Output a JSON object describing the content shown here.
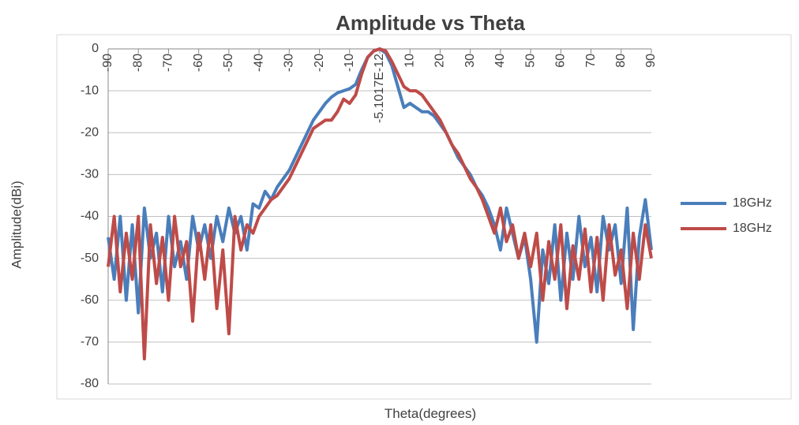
{
  "chart_data": {
    "type": "line",
    "title": "Amplitude vs Theta",
    "x_label": "Theta(degrees)",
    "y_label": "Amplitude(dBi)",
    "x": [
      -90,
      -88,
      -86,
      -84,
      -82,
      -80,
      -78,
      -76,
      -74,
      -72,
      -70,
      -68,
      -66,
      -64,
      -62,
      -60,
      -58,
      -56,
      -54,
      -52,
      -50,
      -48,
      -46,
      -44,
      -42,
      -40,
      -38,
      -36,
      -34,
      -32,
      -30,
      -28,
      -26,
      -24,
      -22,
      -20,
      -18,
      -16,
      -14,
      -12,
      -10,
      -8,
      -6,
      -4,
      -2,
      0,
      2,
      4,
      6,
      8,
      10,
      12,
      14,
      16,
      18,
      20,
      22,
      24,
      26,
      28,
      30,
      32,
      34,
      36,
      38,
      40,
      42,
      44,
      46,
      48,
      50,
      52,
      54,
      56,
      58,
      60,
      62,
      64,
      66,
      68,
      70,
      72,
      74,
      76,
      78,
      80,
      82,
      84,
      86,
      88,
      90
    ],
    "series": [
      {
        "name": "18GHz",
        "color": "#4a7ebb",
        "values": [
          -45,
          -55,
          -40,
          -60,
          -42,
          -63,
          -38,
          -50,
          -44,
          -58,
          -40,
          -52,
          -46,
          -55,
          -40,
          -48,
          -42,
          -50,
          -40,
          -46,
          -38,
          -44,
          -40,
          -48,
          -37,
          -38,
          -34,
          -36,
          -33,
          -31,
          -29,
          -26,
          -23,
          -20,
          -17,
          -15,
          -13,
          -11.5,
          -10.5,
          -10,
          -9.5,
          -8.5,
          -5,
          -2,
          -0.5,
          0,
          -1,
          -4,
          -9,
          -14,
          -13,
          -14,
          -15,
          -15,
          -16,
          -18,
          -20,
          -23,
          -26,
          -28,
          -30,
          -33,
          -35,
          -38,
          -42,
          -48,
          -38,
          -44,
          -50,
          -45,
          -55,
          -70,
          -48,
          -56,
          -42,
          -60,
          -44,
          -55,
          -40,
          -52,
          -45,
          -58,
          -40,
          -48,
          -42,
          -56,
          -38,
          -67,
          -45,
          -36,
          -48
        ]
      },
      {
        "name": "18GHz",
        "color": "#be4b48",
        "values": [
          -52,
          -40,
          -58,
          -44,
          -55,
          -40,
          -74,
          -42,
          -56,
          -45,
          -60,
          -40,
          -52,
          -46,
          -65,
          -44,
          -55,
          -42,
          -62,
          -48,
          -68,
          -40,
          -48,
          -42,
          -44,
          -40,
          -38,
          -36,
          -35,
          -33,
          -31,
          -28,
          -25,
          -22,
          -19,
          -18,
          -17,
          -17,
          -15,
          -12,
          -13,
          -11,
          -6,
          -2,
          -0.5,
          0,
          -0.5,
          -3,
          -6,
          -9,
          -10,
          -10,
          -11,
          -13,
          -15,
          -17,
          -20,
          -23,
          -25,
          -28,
          -31,
          -33,
          -36,
          -40,
          -44,
          -38,
          -46,
          -42,
          -50,
          -44,
          -52,
          -44,
          -60,
          -46,
          -55,
          -42,
          -62,
          -47,
          -55,
          -43,
          -58,
          -45,
          -60,
          -42,
          -54,
          -48,
          -62,
          -44,
          -55,
          -42,
          -50
        ]
      }
    ],
    "xlim": [
      -90,
      90
    ],
    "xticks": [
      -90,
      -80,
      -70,
      -60,
      -50,
      -40,
      -30,
      -20,
      -10,
      {
        "value": 0,
        "label": "-5.1017E-12"
      },
      10,
      20,
      30,
      40,
      50,
      60,
      70,
      80,
      90
    ],
    "ylim": [
      -80,
      0
    ],
    "yticks": [
      -80,
      -70,
      -60,
      -50,
      -40,
      -30,
      -20,
      -10,
      0
    ],
    "grid": true,
    "legend": "right"
  }
}
